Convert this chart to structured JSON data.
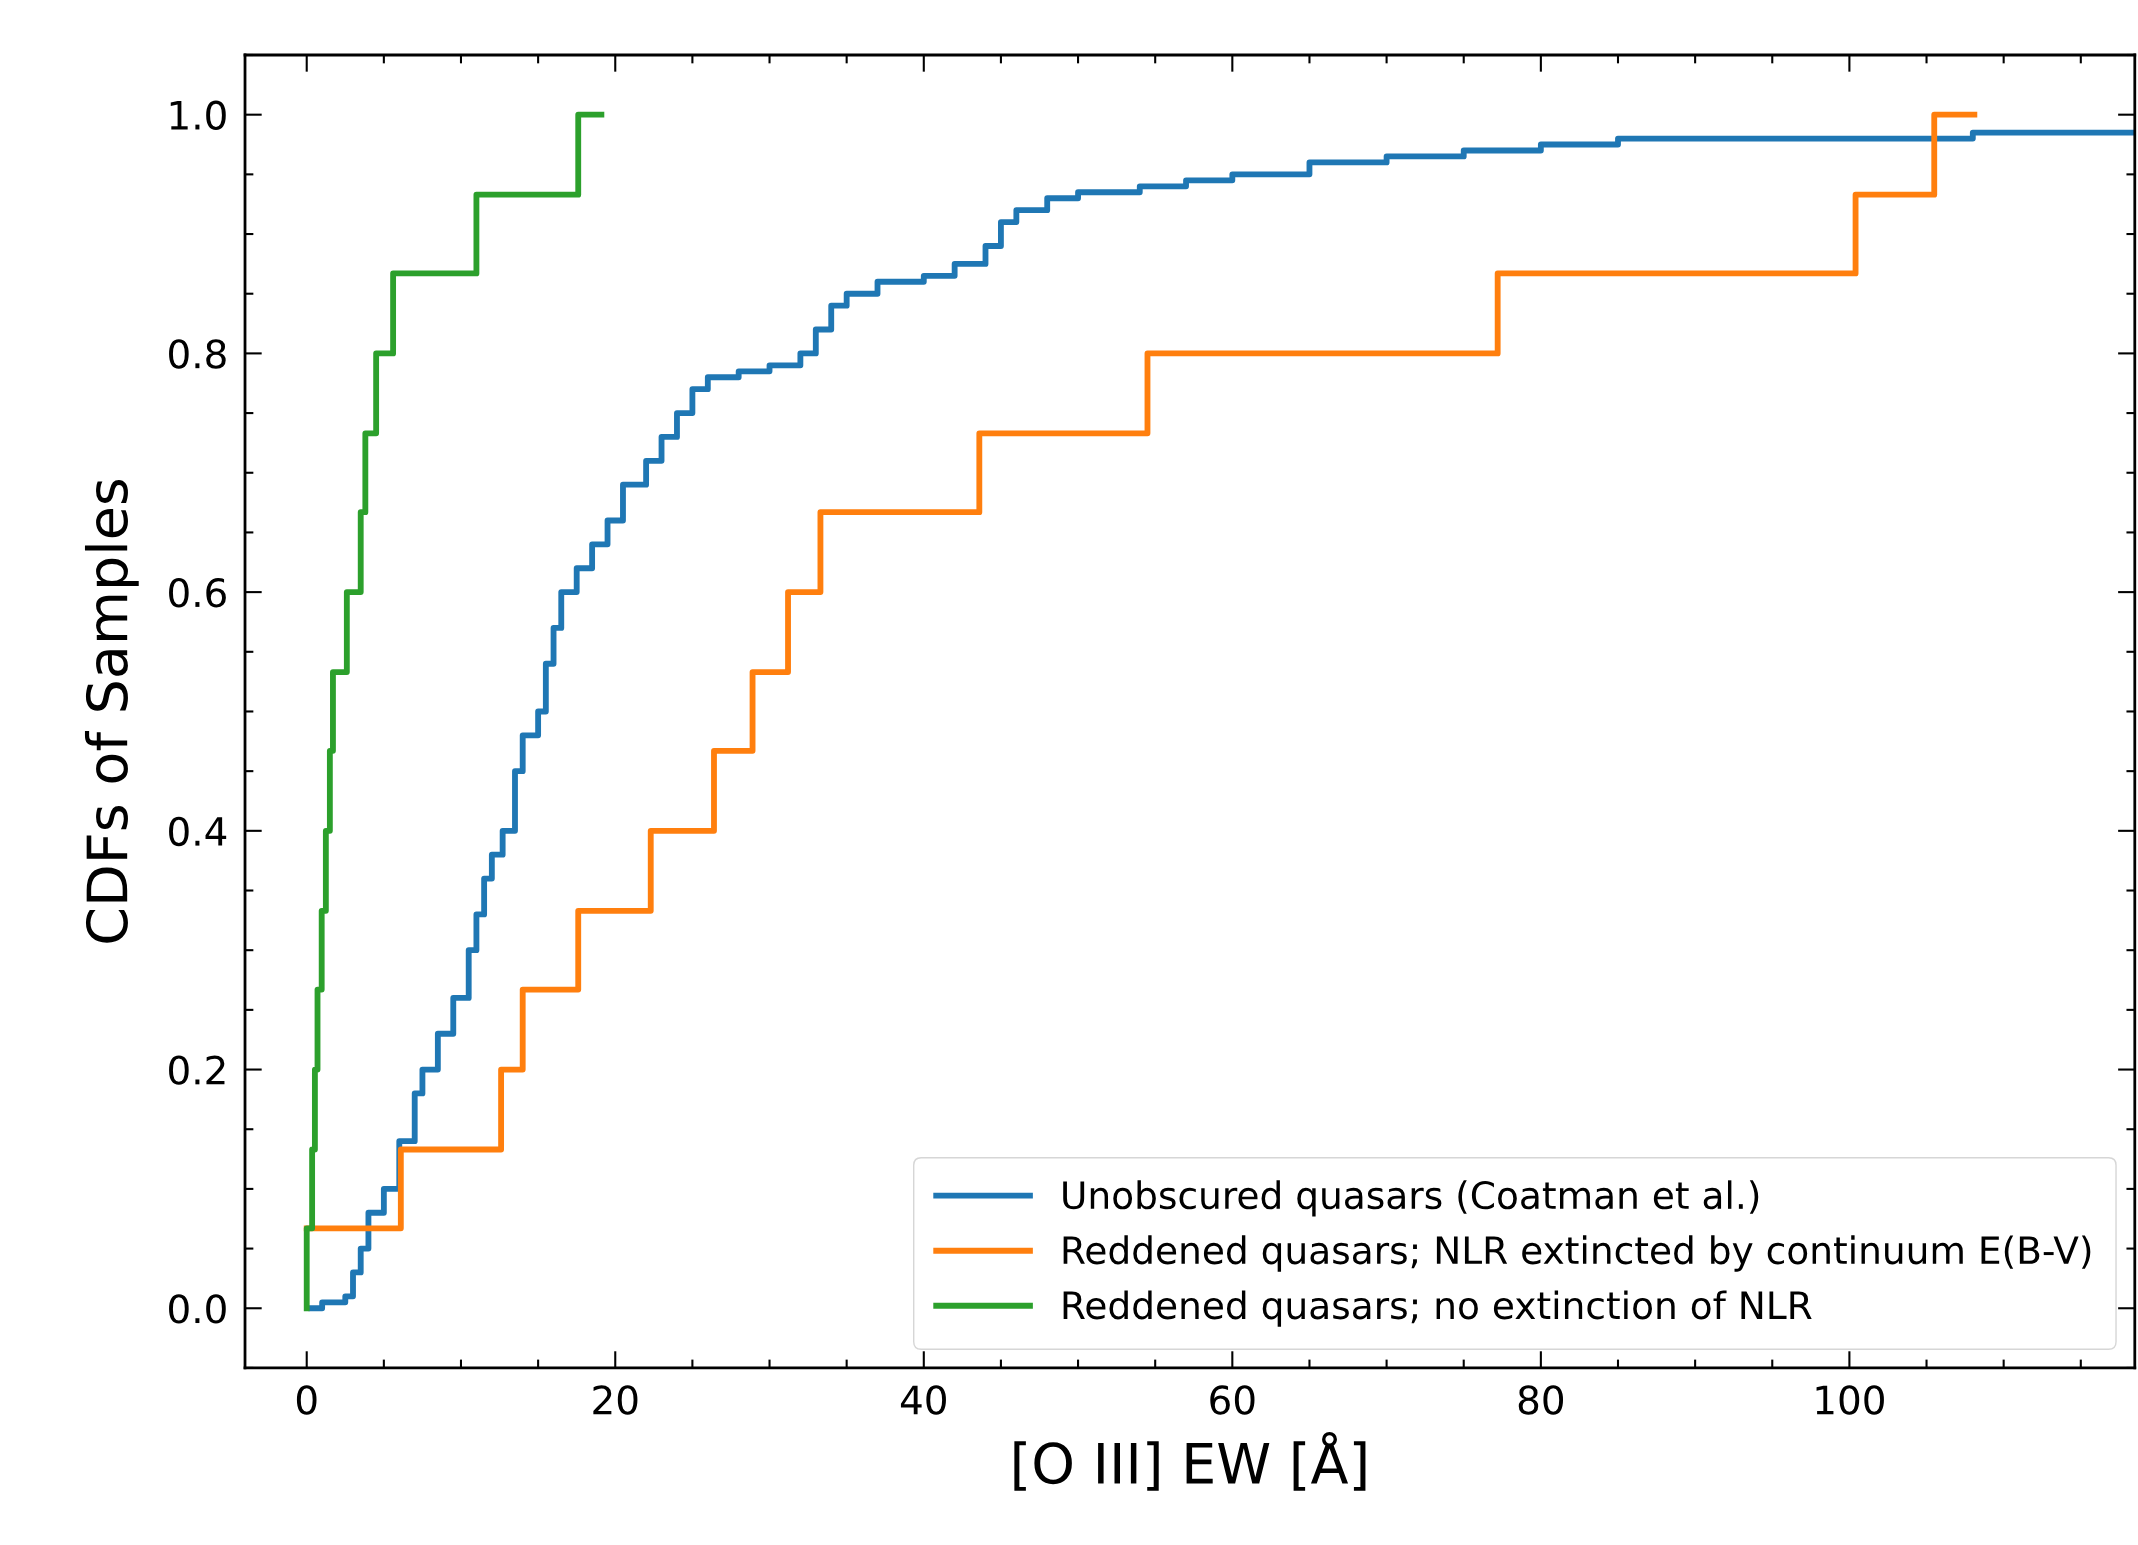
{
  "chart_data": {
    "type": "step",
    "xlabel": "[O III] EW [Å]",
    "ylabel": "CDFs of Samples",
    "xlim": [
      -4,
      118.5
    ],
    "ylim": [
      -0.05,
      1.05
    ],
    "xticks": [
      0,
      20,
      40,
      60,
      80,
      100
    ],
    "yticks": [
      {
        "value": 0,
        "label": "0.0"
      },
      {
        "value": 0.2,
        "label": "0.2"
      },
      {
        "value": 0.4,
        "label": "0.4"
      },
      {
        "value": 0.6,
        "label": "0.6"
      },
      {
        "value": 0.8,
        "label": "0.8"
      },
      {
        "value": 1.0,
        "label": "1.0"
      }
    ],
    "grid": false,
    "legend": "bottom right",
    "series": [
      {
        "name": "Unobscured quasars (Coatman et al.)",
        "color": "#1f77b4",
        "x": [
          0.3,
          1,
          2.5,
          3,
          3.5,
          4,
          5,
          6,
          7,
          7.5,
          8.5,
          9.5,
          10.5,
          11,
          11.5,
          12,
          12.7,
          13.5,
          14,
          15,
          15.5,
          16,
          16.5,
          17.5,
          18.5,
          19.5,
          20.5,
          22,
          23,
          24,
          25,
          26,
          28,
          30,
          32,
          33,
          34,
          35,
          37,
          40,
          42,
          44,
          45,
          46,
          48,
          50,
          54,
          57,
          60,
          65,
          70,
          75,
          80,
          85,
          100,
          108,
          118.5
        ],
        "values": [
          0,
          0.005,
          0.01,
          0.03,
          0.05,
          0.08,
          0.1,
          0.14,
          0.18,
          0.2,
          0.23,
          0.26,
          0.3,
          0.33,
          0.36,
          0.38,
          0.4,
          0.45,
          0.48,
          0.5,
          0.54,
          0.57,
          0.6,
          0.62,
          0.64,
          0.66,
          0.69,
          0.71,
          0.73,
          0.75,
          0.77,
          0.78,
          0.785,
          0.79,
          0.8,
          0.82,
          0.84,
          0.85,
          0.86,
          0.865,
          0.875,
          0.89,
          0.91,
          0.92,
          0.93,
          0.935,
          0.94,
          0.945,
          0.95,
          0.96,
          0.965,
          0.97,
          0.975,
          0.98,
          0.98,
          0.985,
          0.985
        ]
      },
      {
        "name": "Reddened quasars; NLR extincted by continuum E(B-V)",
        "color": "#ff7f0e",
        "x": [
          0,
          6.1,
          12.6,
          14.0,
          17.6,
          22.3,
          26.4,
          28.9,
          31.2,
          33.3,
          43.6,
          54.5,
          77.2,
          100.4,
          105.5,
          108.1
        ],
        "values": [
          0.067,
          0.133,
          0.2,
          0.267,
          0.333,
          0.4,
          0.467,
          0.533,
          0.6,
          0.667,
          0.733,
          0.8,
          0.867,
          0.933,
          1.0,
          1.0
        ]
      },
      {
        "name": "Reddened quasars; no extinction of NLR",
        "color": "#2ca02c",
        "x": [
          0,
          0,
          0.35,
          0.53,
          0.7,
          0.97,
          1.24,
          1.5,
          1.7,
          2.6,
          3.5,
          3.8,
          4.5,
          5.6,
          11.0,
          17.6,
          19.1
        ],
        "values": [
          0,
          0.067,
          0.133,
          0.2,
          0.267,
          0.333,
          0.4,
          0.467,
          0.533,
          0.6,
          0.667,
          0.733,
          0.8,
          0.867,
          0.933,
          1.0,
          1.0
        ]
      }
    ]
  }
}
